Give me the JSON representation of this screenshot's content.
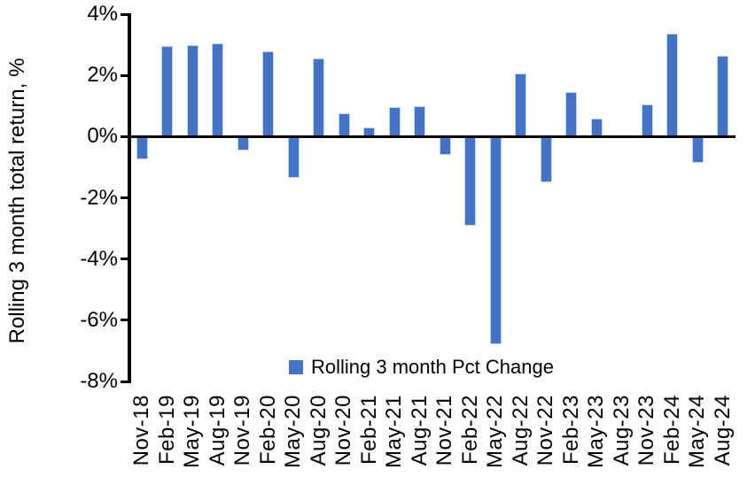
{
  "chart_data": {
    "type": "bar",
    "title": "",
    "xlabel": "",
    "ylabel": "Rolling 3 month total return, %",
    "legend": "Rolling 3 month Pct Change",
    "legend_position": "inside-bottom-center",
    "ylim": [
      -8,
      4
    ],
    "ytick_step": 2,
    "yticks": [
      "4%",
      "2%",
      "0%",
      "-2%",
      "-4%",
      "-6%",
      "-8%"
    ],
    "grid": false,
    "bar_color": "#4472C4",
    "bar_border_color": "#c3d4f0",
    "axis_color": "#000000",
    "categories": [
      "Nov-18",
      "Feb-19",
      "May-19",
      "Aug-19",
      "Nov-19",
      "Feb-20",
      "May-20",
      "Aug-20",
      "Nov-20",
      "Feb-21",
      "May-21",
      "Aug-21",
      "Nov-21",
      "Feb-22",
      "May-22",
      "Aug-22",
      "Nov-22",
      "Feb-23",
      "May-23",
      "Aug-23",
      "Nov-23",
      "Feb-24",
      "May-24",
      "Aug-24"
    ],
    "values": [
      -0.75,
      2.95,
      3.0,
      3.05,
      -0.45,
      2.8,
      -1.35,
      2.55,
      0.75,
      0.3,
      0.95,
      1.0,
      -0.6,
      -2.9,
      -6.8,
      2.05,
      -1.5,
      1.45,
      0.6,
      0.0,
      1.05,
      3.35,
      -0.85,
      2.65
    ]
  }
}
